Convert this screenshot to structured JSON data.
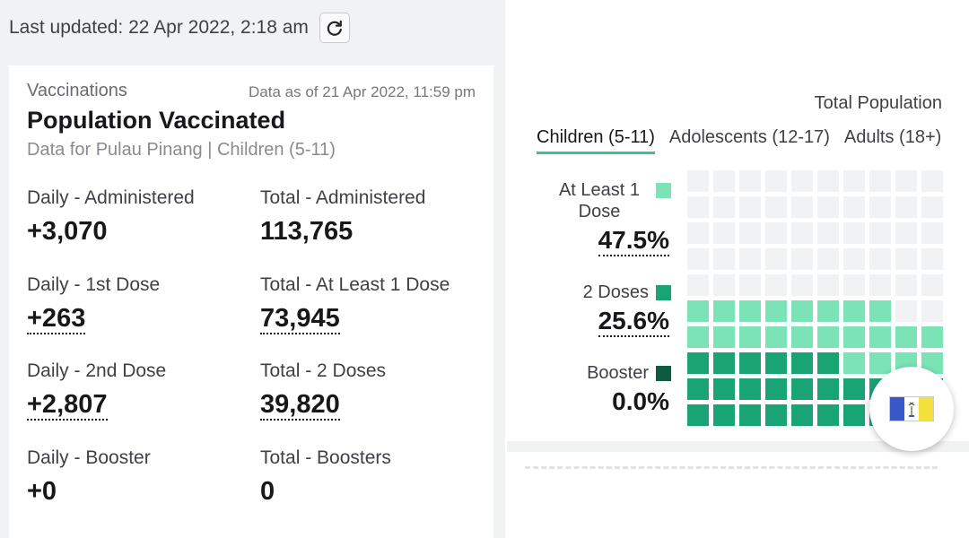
{
  "header": {
    "last_updated": "Last updated: 22 Apr 2022, 2:18 am"
  },
  "card": {
    "eyebrow": "Vaccinations",
    "as_of": "Data as of 21 Apr 2022, 11:59 pm",
    "title": "Population Vaccinated",
    "subtitle": "Data for Pulau Pinang | Children (5-11)",
    "stats": [
      {
        "label": "Daily - Administered",
        "value": "+3,070"
      },
      {
        "label": "Total - Administered",
        "value": "113,765"
      },
      {
        "label": "Daily - 1st Dose",
        "value": "+263"
      },
      {
        "label": "Total - At Least 1 Dose",
        "value": "73,945"
      },
      {
        "label": "Daily - 2nd Dose",
        "value": "+2,807"
      },
      {
        "label": "Total - 2 Doses",
        "value": "39,820"
      },
      {
        "label": "Daily - Booster",
        "value": "+0"
      },
      {
        "label": "Total - Boosters",
        "value": "0"
      }
    ]
  },
  "waffle_panel": {
    "total_population_label": "Total Population",
    "tabs": [
      {
        "label": "Children (5-11)",
        "active": true
      },
      {
        "label": "Adolescents (12-17)",
        "active": false
      },
      {
        "label": "Adults (18+)",
        "active": false
      }
    ],
    "legend": [
      {
        "label": "At Least 1 Dose",
        "percent": "47.5%",
        "color": "#7be3b6"
      },
      {
        "label": "2 Doses",
        "percent": "25.6%",
        "color": "#1aa373"
      },
      {
        "label": "Booster",
        "percent": "0.0%",
        "color": "#0e5a43"
      }
    ],
    "values_percent": {
      "at_least_1_dose": 47.5,
      "two_doses": 25.6,
      "booster": 0.0
    },
    "colors": {
      "empty": "#f1f2f4"
    }
  },
  "fab": {
    "icon": "penang-flag-icon"
  }
}
